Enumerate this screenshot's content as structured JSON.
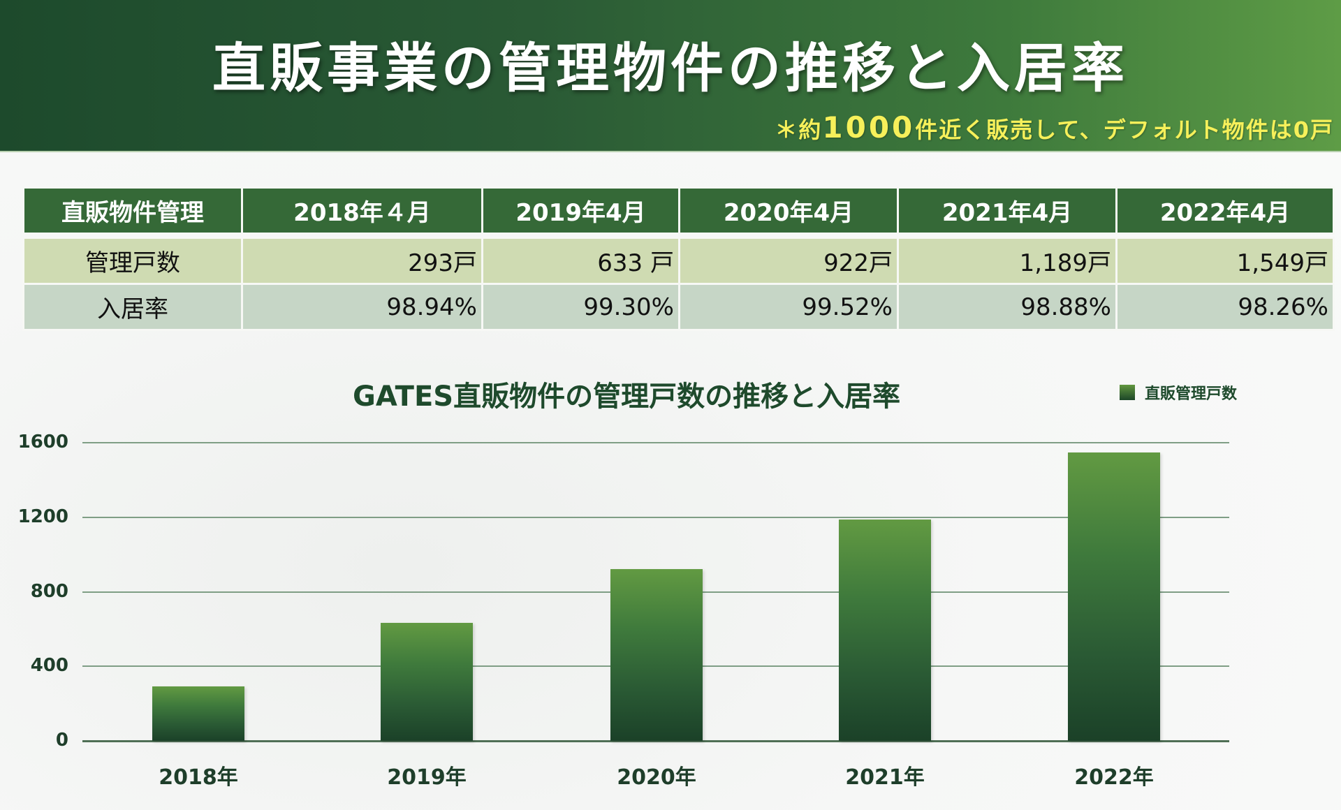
{
  "header": {
    "title": "直販事業の管理物件の推移と入居率",
    "note_prefix": "＊約",
    "note_number": "1000",
    "note_suffix": "件近く販売して、デフォルト物件は0戸"
  },
  "table": {
    "headers": [
      "直販物件管理",
      "2018年４月",
      "2019年4月",
      "2020年4月",
      "2021年4月",
      "2022年4月"
    ],
    "rows": [
      {
        "label": "管理戸数",
        "values": [
          "293戸",
          "633 戸",
          "922戸",
          "1,189戸",
          "1,549戸"
        ]
      },
      {
        "label": "入居率",
        "values": [
          "98.94%",
          "99.30%",
          "99.52%",
          "98.88%",
          "98.26%"
        ]
      }
    ]
  },
  "chart_data": {
    "type": "bar",
    "title": "GATES直販物件の管理戸数の推移と入居率",
    "categories": [
      "2018年",
      "2019年",
      "2020年",
      "2021年",
      "2022年"
    ],
    "series": [
      {
        "name": "直販管理戸数",
        "values": [
          293,
          633,
          922,
          1189,
          1549
        ]
      }
    ],
    "xlabel": "",
    "ylabel": "",
    "ylim": [
      0,
      1600
    ],
    "yticks": [
      "0",
      "400",
      "800",
      "1200",
      "1600"
    ],
    "grid": true,
    "legend_position": "top-right",
    "colors": {
      "bar_top": "#629a42",
      "bar_bottom": "#1b4128"
    }
  }
}
